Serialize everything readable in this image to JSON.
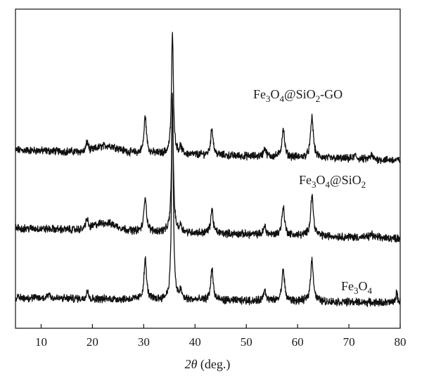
{
  "chart_data": {
    "type": "line",
    "title": "",
    "xlabel": {
      "symbol": "2θ",
      "unit": " (deg.)"
    },
    "ylabel": "",
    "xlim": [
      5,
      80
    ],
    "xticks": [
      10,
      20,
      30,
      40,
      50,
      60,
      70,
      80
    ],
    "grid": false,
    "legend": "inline labels next to each trace",
    "line_color": "#111111",
    "series": [
      {
        "name": "Fe3O4@SiO2-GO",
        "label_parts": [
          {
            "t": "Fe"
          },
          {
            "t": "3",
            "sub": true
          },
          {
            "t": "O"
          },
          {
            "t": "4",
            "sub": true
          },
          {
            "t": "@SiO"
          },
          {
            "t": "2",
            "sub": true
          },
          {
            "t": "-GO"
          }
        ],
        "baseline": 5.25,
        "slope": -0.3,
        "noise": 0.18,
        "humps": [
          {
            "x": 19.0,
            "h": 0.25,
            "w": 0.35
          },
          {
            "x": 23.0,
            "h": 0.2,
            "w": 3.0
          }
        ],
        "peaks": [
          {
            "x": 30.3,
            "h": 1.1,
            "w": 0.28
          },
          {
            "x": 35.6,
            "h": 3.55,
            "w": 0.22
          },
          {
            "x": 37.2,
            "h": 0.2,
            "w": 0.25
          },
          {
            "x": 43.3,
            "h": 0.8,
            "w": 0.28
          },
          {
            "x": 53.6,
            "h": 0.25,
            "w": 0.28
          },
          {
            "x": 57.2,
            "h": 0.85,
            "w": 0.3
          },
          {
            "x": 62.8,
            "h": 1.2,
            "w": 0.32
          },
          {
            "x": 71.2,
            "h": 0.1,
            "w": 0.3
          },
          {
            "x": 74.4,
            "h": 0.12,
            "w": 0.3
          }
        ]
      },
      {
        "name": "Fe3O4@SiO2",
        "label_parts": [
          {
            "t": "Fe"
          },
          {
            "t": "3",
            "sub": true
          },
          {
            "t": "O"
          },
          {
            "t": "4",
            "sub": true
          },
          {
            "t": "@SiO"
          },
          {
            "t": "2",
            "sub": true
          }
        ],
        "baseline": 2.95,
        "slope": -0.3,
        "noise": 0.18,
        "humps": [
          {
            "x": 18.9,
            "h": 0.25,
            "w": 0.35
          },
          {
            "x": 22.5,
            "h": 0.22,
            "w": 3.2
          }
        ],
        "peaks": [
          {
            "x": 30.3,
            "h": 1.05,
            "w": 0.28
          },
          {
            "x": 35.6,
            "h": 3.75,
            "w": 0.22
          },
          {
            "x": 37.2,
            "h": 0.2,
            "w": 0.25
          },
          {
            "x": 43.3,
            "h": 0.7,
            "w": 0.28
          },
          {
            "x": 53.6,
            "h": 0.25,
            "w": 0.28
          },
          {
            "x": 57.2,
            "h": 0.85,
            "w": 0.3
          },
          {
            "x": 62.8,
            "h": 1.2,
            "w": 0.32
          },
          {
            "x": 74.4,
            "h": 0.1,
            "w": 0.3
          }
        ]
      },
      {
        "name": "Fe3O4",
        "label_parts": [
          {
            "t": "Fe"
          },
          {
            "t": "3",
            "sub": true
          },
          {
            "t": "O"
          },
          {
            "t": "4",
            "sub": true
          }
        ],
        "baseline": 0.9,
        "slope": -0.15,
        "noise": 0.18,
        "humps": [
          {
            "x": 11.5,
            "h": 0.12,
            "w": 0.5
          },
          {
            "x": 19.0,
            "h": 0.28,
            "w": 0.3
          }
        ],
        "peaks": [
          {
            "x": 30.3,
            "h": 1.2,
            "w": 0.28
          },
          {
            "x": 35.6,
            "h": 6.1,
            "w": 0.2
          },
          {
            "x": 37.2,
            "h": 0.25,
            "w": 0.25
          },
          {
            "x": 43.3,
            "h": 0.95,
            "w": 0.28
          },
          {
            "x": 53.6,
            "h": 0.35,
            "w": 0.28
          },
          {
            "x": 57.2,
            "h": 0.95,
            "w": 0.3
          },
          {
            "x": 62.8,
            "h": 1.25,
            "w": 0.32
          },
          {
            "x": 79.3,
            "h": 0.3,
            "w": 0.2
          }
        ]
      }
    ]
  }
}
